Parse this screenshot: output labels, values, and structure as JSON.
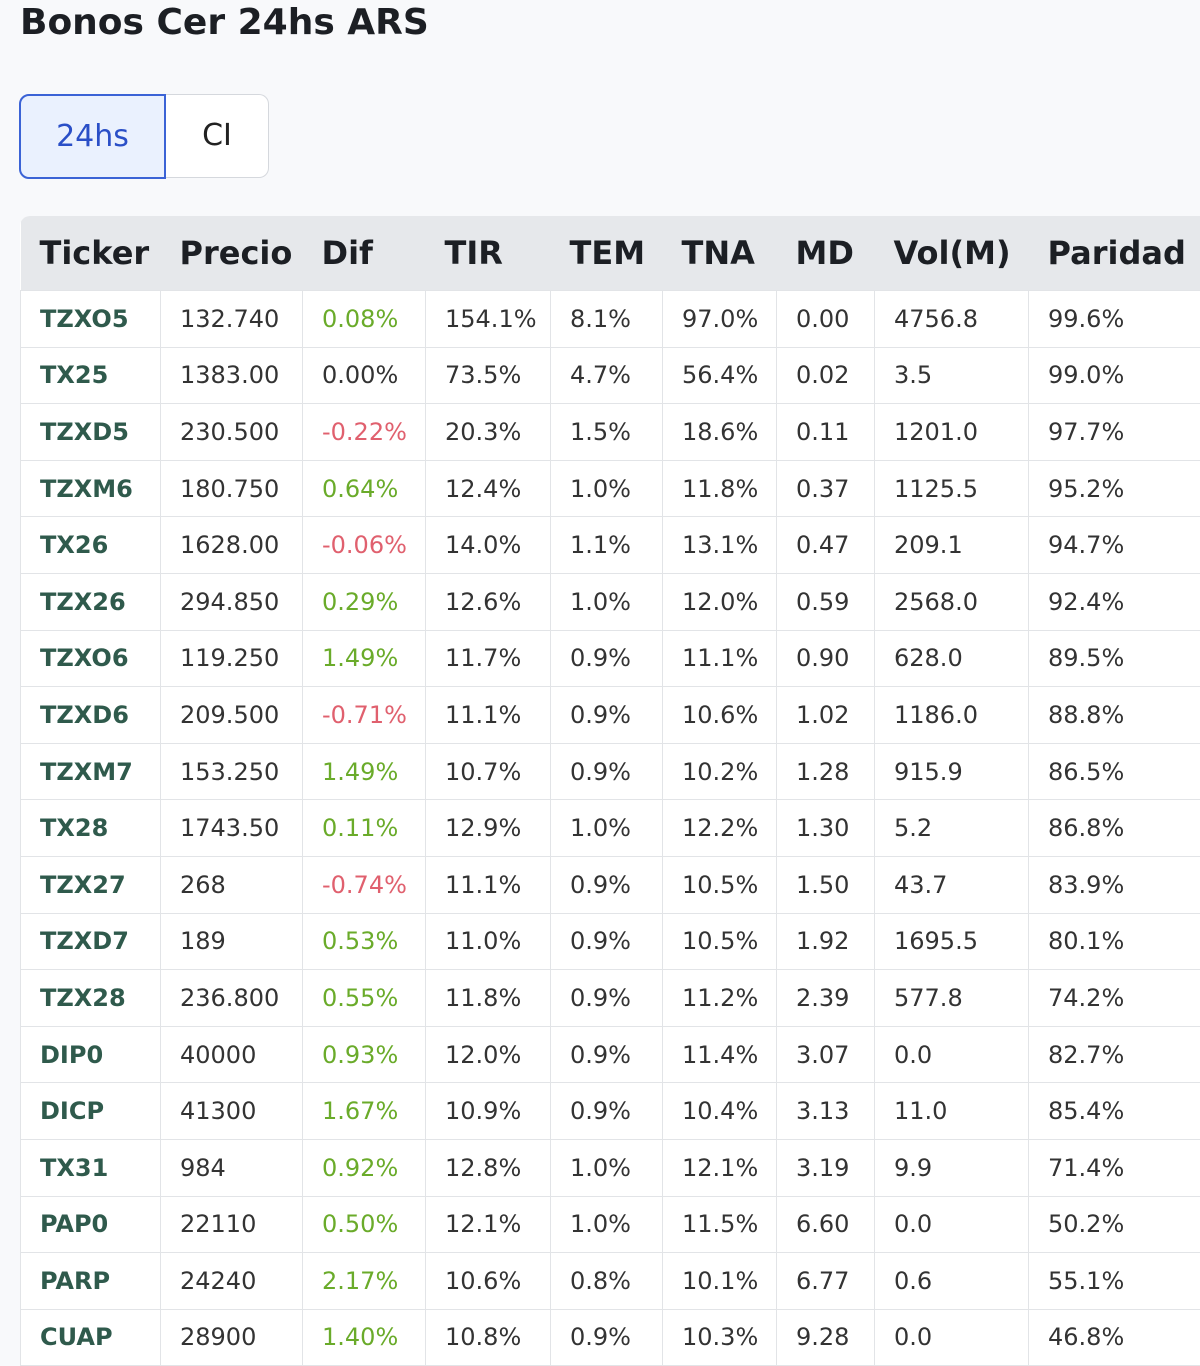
{
  "header": {
    "title": "Bonos Cer 24hs ARS"
  },
  "tabs": [
    "24hs",
    "CI"
  ],
  "table": {
    "columns": [
      "Ticker",
      "Precio",
      "Dif",
      "TIR",
      "TEM",
      "TNA",
      "MD",
      "Vol(M)",
      "Paridad"
    ],
    "rows": [
      [
        "TZXO5",
        "132.740",
        "0.08%",
        "154.1%",
        "8.1%",
        "97.0%",
        "0.00",
        "4756.8",
        "99.6%"
      ],
      [
        "TX25",
        "1383.00",
        "0.00%",
        "73.5%",
        "4.7%",
        "56.4%",
        "0.02",
        "3.5",
        "99.0%"
      ],
      [
        "TZXD5",
        "230.500",
        "-0.22%",
        "20.3%",
        "1.5%",
        "18.6%",
        "0.11",
        "1201.0",
        "97.7%"
      ],
      [
        "TZXM6",
        "180.750",
        "0.64%",
        "12.4%",
        "1.0%",
        "11.8%",
        "0.37",
        "1125.5",
        "95.2%"
      ],
      [
        "TX26",
        "1628.00",
        "-0.06%",
        "14.0%",
        "1.1%",
        "13.1%",
        "0.47",
        "209.1",
        "94.7%"
      ],
      [
        "TZX26",
        "294.850",
        "0.29%",
        "12.6%",
        "1.0%",
        "12.0%",
        "0.59",
        "2568.0",
        "92.4%"
      ],
      [
        "TZXO6",
        "119.250",
        "1.49%",
        "11.7%",
        "0.9%",
        "11.1%",
        "0.90",
        "628.0",
        "89.5%"
      ],
      [
        "TZXD6",
        "209.500",
        "-0.71%",
        "11.1%",
        "0.9%",
        "10.6%",
        "1.02",
        "1186.0",
        "88.8%"
      ],
      [
        "TZXM7",
        "153.250",
        "1.49%",
        "10.7%",
        "0.9%",
        "10.2%",
        "1.28",
        "915.9",
        "86.5%"
      ],
      [
        "TX28",
        "1743.50",
        "0.11%",
        "12.9%",
        "1.0%",
        "12.2%",
        "1.30",
        "5.2",
        "86.8%"
      ],
      [
        "TZX27",
        "268",
        "-0.74%",
        "11.1%",
        "0.9%",
        "10.5%",
        "1.50",
        "43.7",
        "83.9%"
      ],
      [
        "TZXD7",
        "189",
        "0.53%",
        "11.0%",
        "0.9%",
        "10.5%",
        "1.92",
        "1695.5",
        "80.1%"
      ],
      [
        "TZX28",
        "236.800",
        "0.55%",
        "11.8%",
        "0.9%",
        "11.2%",
        "2.39",
        "577.8",
        "74.2%"
      ],
      [
        "DIP0",
        "40000",
        "0.93%",
        "12.0%",
        "0.9%",
        "11.4%",
        "3.07",
        "0.0",
        "82.7%"
      ],
      [
        "DICP",
        "41300",
        "1.67%",
        "10.9%",
        "0.9%",
        "10.4%",
        "3.13",
        "11.0",
        "85.4%"
      ],
      [
        "TX31",
        "984",
        "0.92%",
        "12.8%",
        "1.0%",
        "12.1%",
        "3.19",
        "9.9",
        "71.4%"
      ],
      [
        "PAP0",
        "22110",
        "0.50%",
        "12.1%",
        "1.0%",
        "11.5%",
        "6.60",
        "0.0",
        "50.2%"
      ],
      [
        "PARP",
        "24240",
        "2.17%",
        "10.6%",
        "0.8%",
        "10.1%",
        "6.77",
        "0.6",
        "55.1%"
      ],
      [
        "CUAP",
        "28900",
        "1.40%",
        "10.8%",
        "0.9%",
        "10.3%",
        "9.28",
        "0.0",
        "46.8%"
      ]
    ]
  }
}
